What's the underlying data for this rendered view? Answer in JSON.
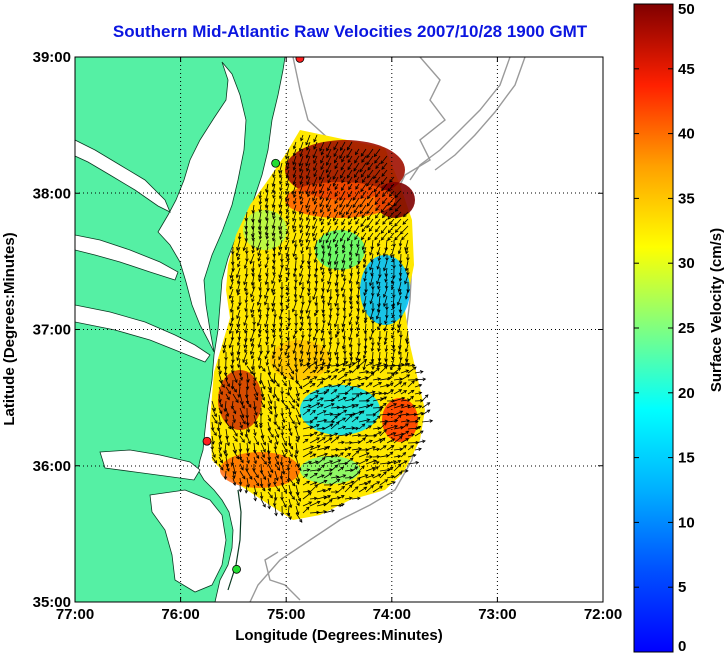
{
  "title": "Southern Mid-Atlantic Raw Velocities 2007/10/28 1900 GMT",
  "x_axis": {
    "label": "Longitude (Degrees:Minutes)",
    "ticks": [
      "77:00",
      "76:00",
      "75:00",
      "74:00",
      "73:00",
      "72:00"
    ],
    "range_deg_west": [
      77,
      72
    ]
  },
  "y_axis": {
    "label": "Latitude (Degrees:Minutes)",
    "ticks": [
      "39:00",
      "38:00",
      "37:00",
      "36:00",
      "35:00"
    ],
    "range_deg_north": [
      35,
      39
    ]
  },
  "colorbar": {
    "label": "Surface Velocity (cm/s)",
    "ticks": [
      "0",
      "5",
      "10",
      "15",
      "20",
      "25",
      "30",
      "35",
      "40",
      "45",
      "50"
    ],
    "range": [
      0,
      50
    ],
    "colormap": "jet"
  },
  "colors": {
    "land": "#55f0a4",
    "title": "#0b16e0",
    "grid": "#000000",
    "bathymetry": "#9a9a9a",
    "vector": "#000000",
    "station_red": "#ff2020",
    "station_green": "#22dd33"
  },
  "stations": [
    {
      "lon": 74.87,
      "lat": 38.99,
      "color": "red"
    },
    {
      "lon": 75.1,
      "lat": 38.22,
      "color": "green"
    },
    {
      "lon": 75.75,
      "lat": 36.18,
      "color": "red"
    },
    {
      "lon": 75.47,
      "lat": 35.24,
      "color": "green"
    }
  ]
}
